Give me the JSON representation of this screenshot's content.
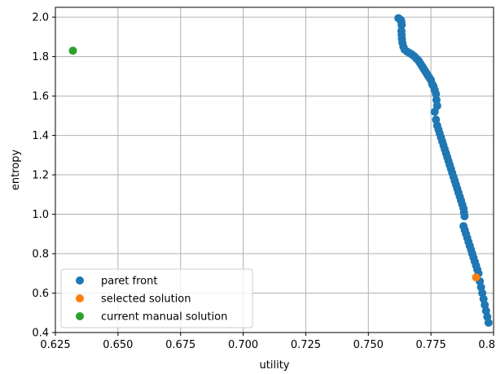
{
  "chart_data": {
    "type": "scatter",
    "title": "",
    "xlabel": "utility",
    "ylabel": "entropy",
    "xlim": [
      0.625,
      0.8
    ],
    "ylim": [
      0.4,
      2.05
    ],
    "xticks": [
      "0.625",
      "0.650",
      "0.675",
      "0.700",
      "0.725",
      "0.750",
      "0.775",
      "0.800"
    ],
    "yticks": [
      "0.4",
      "0.6",
      "0.8",
      "1.0",
      "1.2",
      "1.4",
      "1.6",
      "1.8",
      "2.0"
    ],
    "grid": true,
    "legend_position": "lower left",
    "series": [
      {
        "name": "paret front",
        "color": "#1f77b4",
        "points": [
          [
            0.762,
            1.995
          ],
          [
            0.7625,
            1.99
          ],
          [
            0.763,
            1.985
          ],
          [
            0.7632,
            1.975
          ],
          [
            0.7633,
            1.96
          ],
          [
            0.7632,
            1.93
          ],
          [
            0.7633,
            1.91
          ],
          [
            0.7634,
            1.89
          ],
          [
            0.7636,
            1.87
          ],
          [
            0.764,
            1.85
          ],
          [
            0.7645,
            1.835
          ],
          [
            0.7655,
            1.825
          ],
          [
            0.7665,
            1.818
          ],
          [
            0.7675,
            1.81
          ],
          [
            0.7685,
            1.8
          ],
          [
            0.7692,
            1.79
          ],
          [
            0.77,
            1.78
          ],
          [
            0.7705,
            1.77
          ],
          [
            0.771,
            1.76
          ],
          [
            0.7715,
            1.75
          ],
          [
            0.772,
            1.74
          ],
          [
            0.7725,
            1.73
          ],
          [
            0.773,
            1.72
          ],
          [
            0.7735,
            1.71
          ],
          [
            0.774,
            1.7
          ],
          [
            0.7745,
            1.69
          ],
          [
            0.775,
            1.68
          ],
          [
            0.7755,
            1.66
          ],
          [
            0.776,
            1.65
          ],
          [
            0.7765,
            1.63
          ],
          [
            0.777,
            1.61
          ],
          [
            0.7772,
            1.58
          ],
          [
            0.7775,
            1.55
          ],
          [
            0.7765,
            1.52
          ],
          [
            0.777,
            1.48
          ],
          [
            0.7775,
            1.45
          ],
          [
            0.778,
            1.43
          ],
          [
            0.7785,
            1.41
          ],
          [
            0.779,
            1.39
          ],
          [
            0.7795,
            1.37
          ],
          [
            0.78,
            1.35
          ],
          [
            0.7805,
            1.33
          ],
          [
            0.781,
            1.31
          ],
          [
            0.7815,
            1.29
          ],
          [
            0.782,
            1.27
          ],
          [
            0.7825,
            1.25
          ],
          [
            0.783,
            1.23
          ],
          [
            0.7835,
            1.21
          ],
          [
            0.784,
            1.19
          ],
          [
            0.7845,
            1.17
          ],
          [
            0.785,
            1.15
          ],
          [
            0.7855,
            1.13
          ],
          [
            0.786,
            1.11
          ],
          [
            0.7865,
            1.09
          ],
          [
            0.787,
            1.07
          ],
          [
            0.7875,
            1.05
          ],
          [
            0.788,
            1.03
          ],
          [
            0.7882,
            1.01
          ],
          [
            0.7884,
            0.99
          ],
          [
            0.788,
            0.94
          ],
          [
            0.7885,
            0.92
          ],
          [
            0.789,
            0.9
          ],
          [
            0.7895,
            0.88
          ],
          [
            0.79,
            0.86
          ],
          [
            0.7905,
            0.84
          ],
          [
            0.791,
            0.82
          ],
          [
            0.7915,
            0.8
          ],
          [
            0.792,
            0.78
          ],
          [
            0.7925,
            0.76
          ],
          [
            0.793,
            0.74
          ],
          [
            0.7935,
            0.72
          ],
          [
            0.794,
            0.7
          ],
          [
            0.7945,
            0.66
          ],
          [
            0.795,
            0.63
          ],
          [
            0.7955,
            0.6
          ],
          [
            0.796,
            0.57
          ],
          [
            0.7965,
            0.54
          ],
          [
            0.797,
            0.51
          ],
          [
            0.7975,
            0.48
          ],
          [
            0.798,
            0.45
          ]
        ]
      },
      {
        "name": "selected solution",
        "color": "#ff7f0e",
        "points": [
          [
            0.793,
            0.68
          ]
        ]
      },
      {
        "name": "current manual solution",
        "color": "#2ca02c",
        "points": [
          [
            0.632,
            1.83
          ]
        ]
      }
    ]
  }
}
